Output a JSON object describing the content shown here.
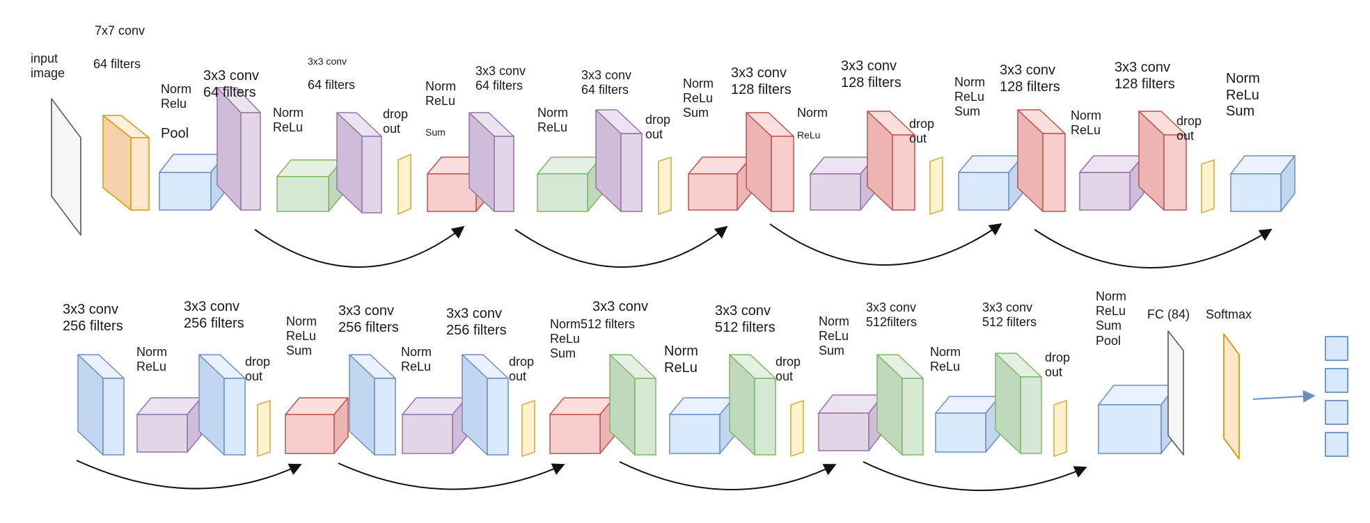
{
  "colors": {
    "gray": {
      "face": "#f5f5f5",
      "side": "#e4e4e4",
      "top": "#fbfbfb",
      "stroke": "#666666"
    },
    "orange": {
      "face": "#ffe6cc",
      "side": "#f3d1aa",
      "top": "#fff0dd",
      "stroke": "#d79b00"
    },
    "blue": {
      "face": "#dae8fc",
      "side": "#c3d6f0",
      "top": "#e8f1fd",
      "stroke": "#6c8ebf"
    },
    "purple": {
      "face": "#e1d5e7",
      "side": "#cfbcd9",
      "top": "#ece3f0",
      "stroke": "#9673a6"
    },
    "green": {
      "face": "#d5e8d4",
      "side": "#bfd9bd",
      "top": "#e3f0e2",
      "stroke": "#82b366"
    },
    "yellow": {
      "face": "#fff2cc",
      "side": "#f3e2ad",
      "top": "#fff7de",
      "stroke": "#d6b656"
    },
    "red": {
      "face": "#f8cecc",
      "side": "#ecb4b2",
      "top": "#fbdedc",
      "stroke": "#b85450"
    },
    "arrow": "#111111",
    "output_arrow": "#6c8ebf"
  },
  "labels": {
    "input_image": "input\nimage",
    "r1_conv7": "7x7 conv",
    "r1_conv7_filters": "64 filters",
    "r1_norm_relu_pool": "Norm\nRelu",
    "r1_pool": "Pool",
    "r1_conv_a": "3x3 conv\n64 filters",
    "r1_norm_relu_a": "Norm\nReLu",
    "r1_conv_b": "3x3 conv",
    "r1_conv_b_filters": "64 filters",
    "r1_drop_a": "drop\nout",
    "r1_norm_relu_sum_a": "Norm\nReLu",
    "r1_sum_a": "Sum",
    "r1_conv_c": "3x3 conv\n64 filters",
    "r1_norm_relu_c": "Norm\nReLu",
    "r1_conv_d": "3x3 conv\n64 filters",
    "r1_drop_b": "drop\nout",
    "r1_norm_relu_sum_b": "Norm\nReLu\nSum",
    "r1_conv_e": "3x3 conv\n128 filters",
    "r1_norm_relu_e_norm": "Norm",
    "r1_norm_relu_e_relu": "ReLu",
    "r1_conv_f": "3x3 conv\n128 filters",
    "r1_drop_c": "drop\nout",
    "r1_norm_relu_sum_c": "Norm\nReLu\nSum",
    "r1_conv_g": "3x3 conv\n128 filters",
    "r1_norm_relu_g": "Norm\nReLu",
    "r1_conv_h": "3x3 conv\n128 filters",
    "r1_drop_d": "drop\nout",
    "r1_norm_relu_sum_d": "Norm\nReLu\nSum",
    "r2_conv_a": "3x3 conv\n256 filters",
    "r2_norm_relu_a": "Norm\nReLu",
    "r2_conv_b": "3x3 conv\n256 filters",
    "r2_drop_a": "drop\nout",
    "r2_norm_relu_sum_a": "Norm\nReLu\nSum",
    "r2_conv_c": "3x3 conv\n256 filters",
    "r2_norm_relu_c": "Norm\nReLu",
    "r2_conv_d": "3x3 conv\n256 filters",
    "r2_drop_b": "drop\nout",
    "r2_norm_relu_sum_b": "Norm512 filters\nReLu\nSum",
    "r2_conv_e": "3x3 conv",
    "r2_norm_relu_e": "Norm\nReLu",
    "r2_conv_f": "3x3 conv\n512 filters",
    "r2_drop_c": "drop\nout",
    "r2_norm_relu_sum_c": "Norm\nReLu\nSum",
    "r2_conv_g": "3x3 conv\n512filters",
    "r2_norm_relu_g": "Norm\nReLu",
    "r2_conv_h": "3x3 conv\n512 filters",
    "r2_drop_d": "drop\nout",
    "r2_norm_relu_sum_pool": "Norm\nReLu\nSum\nPool",
    "r2_fc": "FC (84)",
    "r2_softmax": "Softmax"
  }
}
